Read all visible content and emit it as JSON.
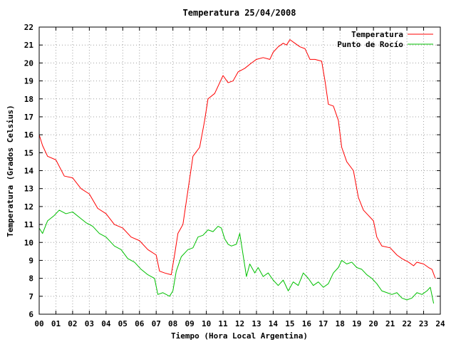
{
  "chart_data": {
    "type": "line",
    "title": "Temperatura 25/04/2008",
    "xlabel": "Tiempo (Hora Local Argentina)",
    "ylabel": "Temperatura (Grados Celsius)",
    "xlim": [
      0,
      24
    ],
    "ylim": [
      6,
      22
    ],
    "grid": true,
    "legend_position": "top-right",
    "x_tick_labels": [
      "00",
      "01",
      "02",
      "03",
      "04",
      "05",
      "06",
      "07",
      "08",
      "09",
      "10",
      "11",
      "12",
      "13",
      "14",
      "15",
      "16",
      "17",
      "18",
      "19",
      "20",
      "21",
      "22",
      "23",
      "24"
    ],
    "y_tick_labels": [
      "6",
      "7",
      "8",
      "9",
      "10",
      "11",
      "12",
      "13",
      "14",
      "15",
      "16",
      "17",
      "18",
      "19",
      "20",
      "21",
      "22"
    ],
    "series": [
      {
        "name": "Temperatura",
        "color": "#ff0000",
        "points": [
          [
            0.0,
            16.0
          ],
          [
            0.2,
            15.4
          ],
          [
            0.5,
            14.8
          ],
          [
            1.0,
            14.6
          ],
          [
            1.5,
            13.7
          ],
          [
            2.0,
            13.6
          ],
          [
            2.5,
            13.0
          ],
          [
            3.0,
            12.7
          ],
          [
            3.5,
            11.9
          ],
          [
            4.0,
            11.6
          ],
          [
            4.5,
            11.0
          ],
          [
            5.0,
            10.8
          ],
          [
            5.5,
            10.3
          ],
          [
            6.0,
            10.1
          ],
          [
            6.5,
            9.6
          ],
          [
            7.0,
            9.3
          ],
          [
            7.2,
            8.4
          ],
          [
            7.5,
            8.3
          ],
          [
            7.9,
            8.2
          ],
          [
            8.1,
            9.3
          ],
          [
            8.3,
            10.5
          ],
          [
            8.6,
            11.0
          ],
          [
            8.9,
            12.9
          ],
          [
            9.2,
            14.8
          ],
          [
            9.6,
            15.3
          ],
          [
            9.9,
            16.8
          ],
          [
            10.1,
            18.0
          ],
          [
            10.5,
            18.3
          ],
          [
            10.8,
            18.9
          ],
          [
            11.0,
            19.3
          ],
          [
            11.3,
            18.9
          ],
          [
            11.6,
            19.0
          ],
          [
            11.9,
            19.5
          ],
          [
            12.3,
            19.7
          ],
          [
            12.7,
            20.0
          ],
          [
            13.0,
            20.2
          ],
          [
            13.4,
            20.3
          ],
          [
            13.8,
            20.2
          ],
          [
            14.0,
            20.6
          ],
          [
            14.3,
            20.9
          ],
          [
            14.6,
            21.1
          ],
          [
            14.8,
            21.0
          ],
          [
            15.0,
            21.3
          ],
          [
            15.3,
            21.1
          ],
          [
            15.6,
            20.9
          ],
          [
            15.9,
            20.8
          ],
          [
            16.2,
            20.2
          ],
          [
            16.5,
            20.2
          ],
          [
            16.9,
            20.1
          ],
          [
            17.1,
            19.0
          ],
          [
            17.3,
            17.7
          ],
          [
            17.6,
            17.6
          ],
          [
            17.9,
            16.8
          ],
          [
            18.1,
            15.3
          ],
          [
            18.4,
            14.5
          ],
          [
            18.8,
            14.0
          ],
          [
            19.1,
            12.5
          ],
          [
            19.4,
            11.8
          ],
          [
            19.7,
            11.5
          ],
          [
            20.0,
            11.2
          ],
          [
            20.2,
            10.3
          ],
          [
            20.5,
            9.8
          ],
          [
            21.0,
            9.7
          ],
          [
            21.4,
            9.3
          ],
          [
            21.7,
            9.1
          ],
          [
            22.1,
            8.9
          ],
          [
            22.4,
            8.7
          ],
          [
            22.6,
            8.9
          ],
          [
            23.0,
            8.8
          ],
          [
            23.3,
            8.6
          ],
          [
            23.5,
            8.5
          ],
          [
            23.7,
            8.0
          ]
        ]
      },
      {
        "name": "Punto de Rocío",
        "color": "#00c000",
        "points": [
          [
            0.0,
            10.8
          ],
          [
            0.2,
            10.5
          ],
          [
            0.5,
            11.2
          ],
          [
            0.9,
            11.5
          ],
          [
            1.2,
            11.8
          ],
          [
            1.6,
            11.6
          ],
          [
            2.0,
            11.7
          ],
          [
            2.4,
            11.4
          ],
          [
            2.8,
            11.1
          ],
          [
            3.2,
            10.9
          ],
          [
            3.6,
            10.5
          ],
          [
            4.0,
            10.3
          ],
          [
            4.5,
            9.8
          ],
          [
            4.9,
            9.6
          ],
          [
            5.3,
            9.1
          ],
          [
            5.7,
            8.9
          ],
          [
            6.1,
            8.5
          ],
          [
            6.5,
            8.2
          ],
          [
            6.9,
            8.0
          ],
          [
            7.1,
            7.1
          ],
          [
            7.4,
            7.2
          ],
          [
            7.8,
            7.0
          ],
          [
            8.0,
            7.3
          ],
          [
            8.2,
            8.4
          ],
          [
            8.5,
            9.2
          ],
          [
            8.9,
            9.6
          ],
          [
            9.2,
            9.7
          ],
          [
            9.5,
            10.3
          ],
          [
            9.8,
            10.4
          ],
          [
            10.1,
            10.7
          ],
          [
            10.4,
            10.6
          ],
          [
            10.7,
            10.9
          ],
          [
            10.9,
            10.8
          ],
          [
            11.1,
            10.2
          ],
          [
            11.3,
            9.9
          ],
          [
            11.5,
            9.8
          ],
          [
            11.8,
            9.9
          ],
          [
            12.0,
            10.5
          ],
          [
            12.2,
            9.3
          ],
          [
            12.4,
            8.1
          ],
          [
            12.6,
            8.8
          ],
          [
            12.9,
            8.3
          ],
          [
            13.1,
            8.6
          ],
          [
            13.4,
            8.1
          ],
          [
            13.7,
            8.3
          ],
          [
            14.0,
            7.9
          ],
          [
            14.3,
            7.6
          ],
          [
            14.6,
            7.9
          ],
          [
            14.9,
            7.3
          ],
          [
            15.2,
            7.8
          ],
          [
            15.5,
            7.6
          ],
          [
            15.8,
            8.3
          ],
          [
            16.1,
            8.0
          ],
          [
            16.4,
            7.6
          ],
          [
            16.7,
            7.8
          ],
          [
            17.0,
            7.5
          ],
          [
            17.3,
            7.7
          ],
          [
            17.6,
            8.3
          ],
          [
            17.9,
            8.6
          ],
          [
            18.1,
            9.0
          ],
          [
            18.4,
            8.8
          ],
          [
            18.7,
            8.9
          ],
          [
            19.0,
            8.6
          ],
          [
            19.3,
            8.5
          ],
          [
            19.6,
            8.2
          ],
          [
            19.9,
            8.0
          ],
          [
            20.2,
            7.7
          ],
          [
            20.5,
            7.3
          ],
          [
            20.8,
            7.2
          ],
          [
            21.1,
            7.1
          ],
          [
            21.4,
            7.2
          ],
          [
            21.7,
            6.9
          ],
          [
            22.0,
            6.8
          ],
          [
            22.3,
            6.9
          ],
          [
            22.6,
            7.2
          ],
          [
            22.9,
            7.1
          ],
          [
            23.2,
            7.3
          ],
          [
            23.4,
            7.5
          ],
          [
            23.6,
            6.6
          ]
        ]
      }
    ]
  }
}
